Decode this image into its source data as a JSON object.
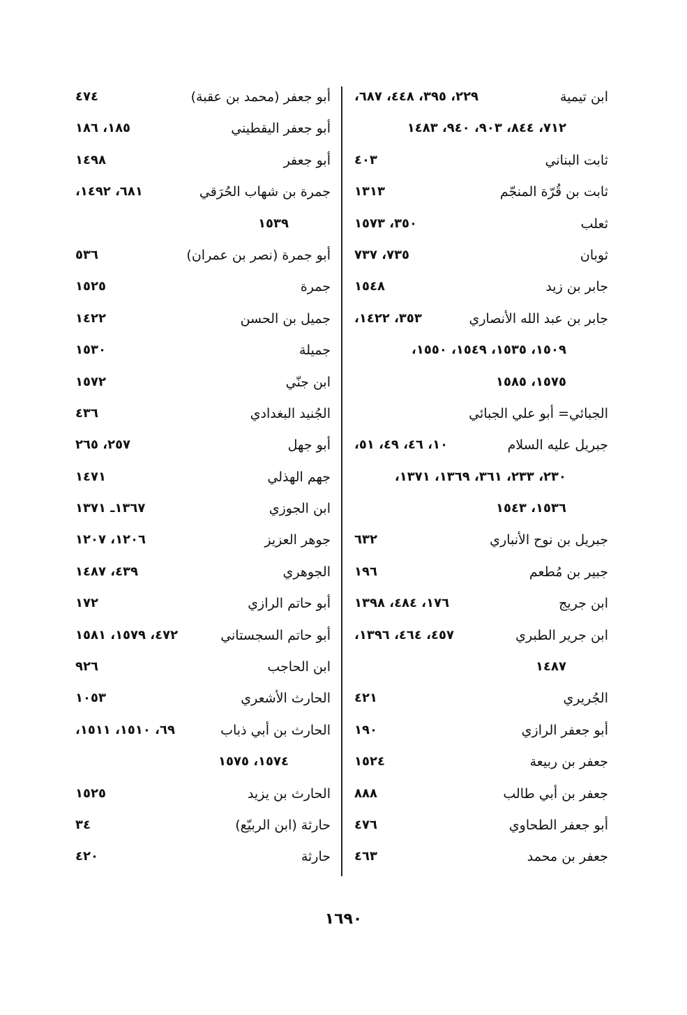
{
  "right_column": [
    {
      "name": "ابن تيمية",
      "pages": "٢٢٩، ٣٩٥، ٤٤٨، ٦٨٧،"
    },
    {
      "cont": "٧١٢، ٨٤٤، ٩٠٣، ٩٤٠، ١٤٨٣"
    },
    {
      "name": "ثابت البناني",
      "pages": "٤٠٣"
    },
    {
      "name": "ثابت بن قُرّة المنجّم",
      "pages": "١٣١٣"
    },
    {
      "name": "ثعلب",
      "pages": "٣٥٠، ١٥٧٣"
    },
    {
      "name": "ثوبان",
      "pages": "٧٣٥، ٧٣٧"
    },
    {
      "name": "جابر بن زيد",
      "pages": "١٥٤٨"
    },
    {
      "name": "جابر بن عبد الله الأنصاري",
      "pages": "٣٥٣، ١٤٢٢،"
    },
    {
      "cont": "١٥٠٩، ١٥٣٥، ١٥٤٩، ١٥٥٠،"
    },
    {
      "cont": "١٥٧٥، ١٥٨٥"
    },
    {
      "name": "الجبائي= أبو علي الجبائي",
      "pages": ""
    },
    {
      "name": "جبريل عليه السلام",
      "pages": "١٠، ٤٦، ٤٩، ٥١،"
    },
    {
      "cont": "٢٣٠، ٢٣٣، ٣٦١، ١٣٦٩، ١٣٧١،"
    },
    {
      "cont": "١٥٣٦، ١٥٤٣"
    },
    {
      "name": "جبريل بن نوح الأنباري",
      "pages": "٦٣٢"
    },
    {
      "name": "جبير بن مُطعم",
      "pages": "١٩٦"
    },
    {
      "name": "ابن جريج",
      "pages": "١٧٦، ٤٨٤، ١٣٩٨"
    },
    {
      "name": "ابن جرير الطبري",
      "pages": "٤٥٧، ٤٦٤، ١٣٩٦،"
    },
    {
      "cont": "١٤٨٧"
    },
    {
      "name": "الجُريري",
      "pages": "٤٢١"
    },
    {
      "name": "أبو جعفر الرازي",
      "pages": "١٩٠"
    },
    {
      "name": "جعفر بن ربيعة",
      "pages": "١٥٢٤"
    },
    {
      "name": "جعفر بن أبي طالب",
      "pages": "٨٨٨"
    },
    {
      "name": "أبو جعفر الطحاوي",
      "pages": "٤٧٦"
    },
    {
      "name": "جعفر بن محمد",
      "pages": "٤٦٣"
    }
  ],
  "left_column": [
    {
      "name": "أبو جعفر (محمد بن عقبة)",
      "pages": "٤٧٤"
    },
    {
      "name": "أبو جعفر اليقطيني",
      "pages": "١٨٥، ١٨٦"
    },
    {
      "name": "أبو جعفر",
      "pages": "١٤٩٨"
    },
    {
      "name": "جمرة بن شهاب الحُرَقي",
      "pages": "٦٨١، ١٤٩٢،"
    },
    {
      "cont": "١٥٣٩"
    },
    {
      "name": "أبو جمرة (نصر بن عمران)",
      "pages": "٥٣٦"
    },
    {
      "name": "جمرة",
      "pages": "١٥٢٥"
    },
    {
      "name": "جميل بن الحسن",
      "pages": "١٤٢٢"
    },
    {
      "name": "جميلة",
      "pages": "١٥٣٠"
    },
    {
      "name": "ابن جنّي",
      "pages": "١٥٧٢"
    },
    {
      "name": "الجُنيد البغدادي",
      "pages": "٤٣٦"
    },
    {
      "name": "أبو جهل",
      "pages": "٢٥٧، ٢٦٥"
    },
    {
      "name": "جهم الهذلي",
      "pages": "١٤٧١"
    },
    {
      "name": "ابن الجوزي",
      "pages": "١٣٦٧ـ ١٣٧١"
    },
    {
      "name": "جوهر العزيز",
      "pages": "١٢٠٦، ١٢٠٧"
    },
    {
      "name": "الجوهري",
      "pages": "٤٣٩، ١٤٨٧"
    },
    {
      "name": "أبو حاتم الرازي",
      "pages": "١٧٢"
    },
    {
      "name": "أبو حاتم السجستاني",
      "pages": "٤٧٢، ١٥٧٩، ١٥٨١"
    },
    {
      "name": "ابن الحاجب",
      "pages": "٩٢٦"
    },
    {
      "name": "الحارث الأشعري",
      "pages": "١٠٥٣"
    },
    {
      "name": "الحارث بن أبي ذباب",
      "pages": "٦٩، ١٥١٠، ١٥١١،"
    },
    {
      "cont": "١٥٧٤، ١٥٧٥"
    },
    {
      "name": "الحارث بن يزيد",
      "pages": "١٥٢٥"
    },
    {
      "name": "حارثة (ابن الربيّع)",
      "pages": "٣٤"
    },
    {
      "name": "حارثة",
      "pages": "٤٢٠"
    }
  ],
  "page_number": "١٦٩٠"
}
